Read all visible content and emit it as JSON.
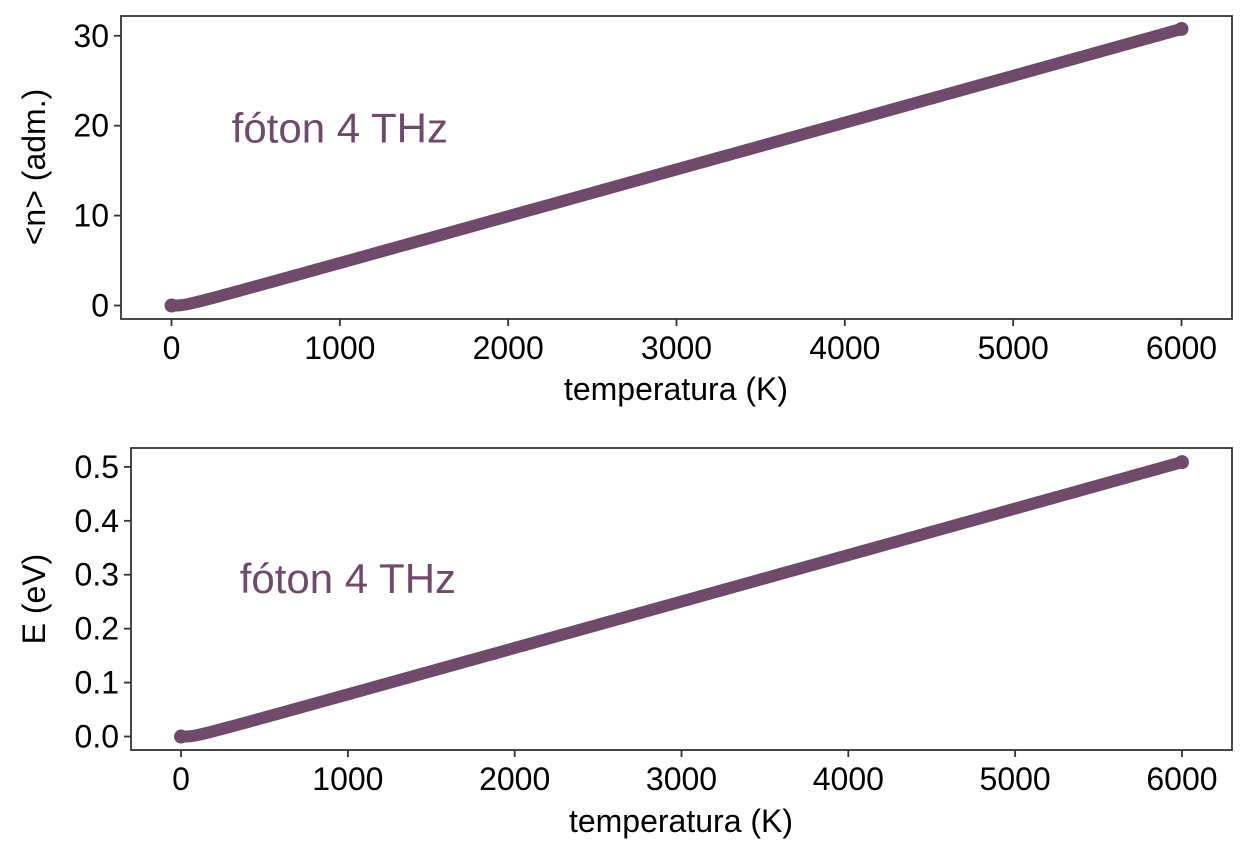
{
  "colors": {
    "series": "#6f4a6b",
    "frame": "#333333",
    "annotation": "#6f4a6b"
  },
  "chart_data": [
    {
      "type": "scatter",
      "title": "",
      "xlabel": "temperatura (K)",
      "ylabel": "<n> (adm.)",
      "xlim": [
        -300,
        6300
      ],
      "ylim": [
        -1.5,
        32.2
      ],
      "xticks": [
        0,
        1000,
        2000,
        3000,
        4000,
        5000,
        6000
      ],
      "xtick_labels": [
        "0",
        "1000",
        "2000",
        "3000",
        "4000",
        "5000",
        "6000"
      ],
      "yticks": [
        0,
        10,
        20,
        30
      ],
      "ytick_labels": [
        "0",
        "10",
        "20",
        "30"
      ],
      "grid": false,
      "legend": "none",
      "annotation": {
        "text": "fóton 4 THz",
        "x": 1000,
        "y": 19.7
      },
      "series": [
        {
          "quantity": "mean_occupation",
          "x_range": [
            0,
            6000
          ]
        }
      ]
    },
    {
      "type": "scatter",
      "title": "",
      "xlabel": "temperatura (K)",
      "ylabel": "E (eV)",
      "xlim": [
        -300,
        6300
      ],
      "ylim": [
        -0.025,
        0.535
      ],
      "xticks": [
        0,
        1000,
        2000,
        3000,
        4000,
        5000,
        6000
      ],
      "xtick_labels": [
        "0",
        "1000",
        "2000",
        "3000",
        "4000",
        "5000",
        "6000"
      ],
      "yticks": [
        0.0,
        0.1,
        0.2,
        0.3,
        0.4,
        0.5
      ],
      "ytick_labels": [
        "0.0",
        "0.1",
        "0.2",
        "0.3",
        "0.4",
        "0.5"
      ],
      "grid": false,
      "legend": "none",
      "annotation": {
        "text": "fóton 4 THz",
        "x": 1000,
        "y": 0.292
      },
      "series": [
        {
          "quantity": "mean_energy",
          "x_range": [
            0,
            6000
          ]
        }
      ]
    }
  ]
}
